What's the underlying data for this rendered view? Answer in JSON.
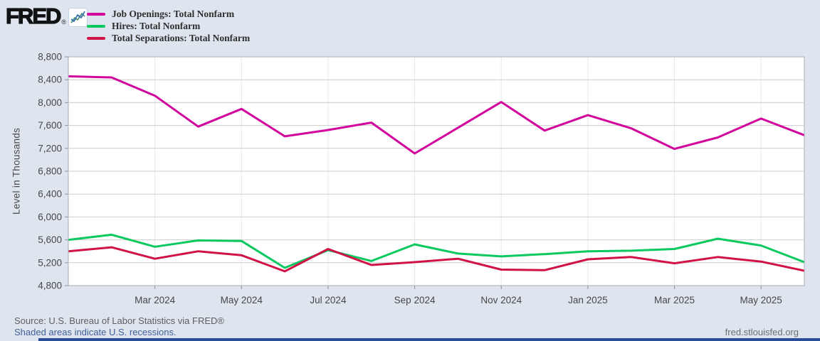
{
  "header": {
    "logo_text": "FRED",
    "registered_mark": "®"
  },
  "y_axis": {
    "title": "Level in Thousands",
    "tick_labels": [
      "8,800",
      "8,400",
      "8,000",
      "7,600",
      "7,200",
      "6,800",
      "6,400",
      "6,000",
      "5,600",
      "5,200",
      "4,800"
    ]
  },
  "x_axis": {
    "tick_labels": [
      {
        "label": "Mar 2024",
        "index": 2
      },
      {
        "label": "May 2024",
        "index": 4
      },
      {
        "label": "Jul 2024",
        "index": 6
      },
      {
        "label": "Sep 2024",
        "index": 8
      },
      {
        "label": "Nov 2024",
        "index": 10
      },
      {
        "label": "Jan 2025",
        "index": 12
      },
      {
        "label": "Mar 2025",
        "index": 14
      },
      {
        "label": "May 2025",
        "index": 16
      }
    ]
  },
  "footer": {
    "source": "Source: U.S. Bureau of Labor Statistics via FRED®",
    "recession_note": "Shaded areas indicate U.S. recessions.",
    "site": "fred.stlouisfed.org"
  },
  "colors": {
    "background": "#dfe5ee",
    "plot_background": "#ffffff",
    "plot_border": "#a6adb5",
    "grid": "#cbcbcb",
    "vertical_grid": "#e4e9f1",
    "tick": "#8b9197",
    "axis_text": "#474747",
    "scrollbar": "#2b4b9b"
  },
  "chart_data": {
    "type": "line",
    "title": "",
    "ylabel": "Level in Thousands",
    "ylim": [
      4800,
      8800
    ],
    "y_tick_step": 400,
    "grid": true,
    "legend_position": "top-left",
    "x": [
      "Jan 2024",
      "Feb 2024",
      "Mar 2024",
      "Apr 2024",
      "May 2024",
      "Jun 2024",
      "Jul 2024",
      "Aug 2024",
      "Sep 2024",
      "Oct 2024",
      "Nov 2024",
      "Dec 2024",
      "Jan 2025",
      "Feb 2025",
      "Mar 2025",
      "Apr 2025",
      "May 2025",
      "Jun 2025"
    ],
    "series": [
      {
        "name": "Job Openings: Total Nonfarm",
        "color": "#d2059c",
        "values": [
          8460,
          8440,
          8120,
          7580,
          7890,
          7410,
          7520,
          7650,
          7110,
          7560,
          8010,
          7510,
          7780,
          7550,
          7190,
          7390,
          7720,
          7430
        ]
      },
      {
        "name": "Hires: Total Nonfarm",
        "color": "#0bc95f",
        "values": [
          5600,
          5690,
          5480,
          5590,
          5580,
          5110,
          5420,
          5230,
          5520,
          5360,
          5310,
          5350,
          5400,
          5410,
          5440,
          5620,
          5500,
          5210
        ]
      },
      {
        "name": "Total Separations: Total Nonfarm",
        "color": "#d01246",
        "values": [
          5400,
          5470,
          5270,
          5400,
          5330,
          5050,
          5440,
          5160,
          5210,
          5270,
          5080,
          5070,
          5260,
          5300,
          5190,
          5300,
          5220,
          5060
        ]
      }
    ]
  }
}
